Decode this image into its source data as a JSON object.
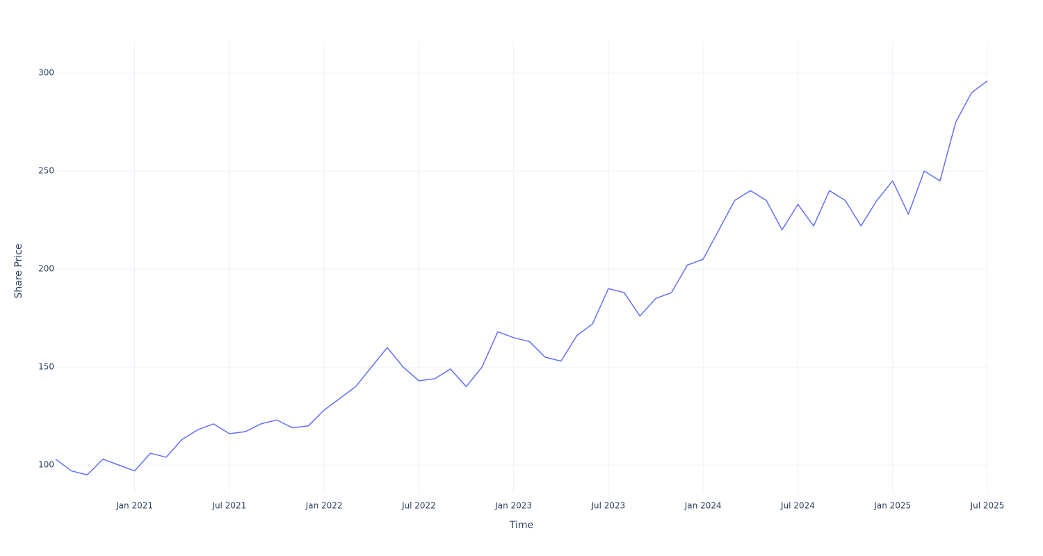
{
  "chart_data": {
    "type": "line",
    "x_label": "Time",
    "y_label": "Share Price",
    "x": [
      "2020-08",
      "2020-09",
      "2020-10",
      "2020-11",
      "2020-12",
      "2021-01",
      "2021-02",
      "2021-03",
      "2021-04",
      "2021-05",
      "2021-06",
      "2021-07",
      "2021-08",
      "2021-09",
      "2021-10",
      "2021-11",
      "2021-12",
      "2022-01",
      "2022-02",
      "2022-03",
      "2022-04",
      "2022-05",
      "2022-06",
      "2022-07",
      "2022-08",
      "2022-09",
      "2022-10",
      "2022-11",
      "2022-12",
      "2023-01",
      "2023-02",
      "2023-03",
      "2023-04",
      "2023-05",
      "2023-06",
      "2023-07",
      "2023-08",
      "2023-09",
      "2023-10",
      "2023-11",
      "2023-12",
      "2024-01",
      "2024-02",
      "2024-03",
      "2024-04",
      "2024-05",
      "2024-06",
      "2024-07",
      "2024-08",
      "2024-09",
      "2024-10",
      "2024-11",
      "2024-12",
      "2025-01",
      "2025-02",
      "2025-03",
      "2025-04",
      "2025-05",
      "2025-06",
      "2025-07"
    ],
    "series": [
      {
        "color": "#636efa",
        "values": [
          103,
          97,
          95,
          103,
          100,
          97,
          106,
          104,
          113,
          118,
          121,
          116,
          117,
          121,
          123,
          119,
          120,
          128,
          134,
          140,
          150,
          160,
          150,
          143,
          144,
          149,
          140,
          150,
          168,
          165,
          163,
          155,
          153,
          166,
          172,
          190,
          188,
          176,
          185,
          188,
          202,
          205,
          220,
          235,
          240,
          235,
          220,
          233,
          222,
          240,
          235,
          222,
          235,
          245,
          228,
          250,
          245,
          275,
          290,
          296
        ]
      }
    ],
    "xlim": [
      "2020-08",
      "2025-07"
    ],
    "xticks": [
      {
        "value": "2021-01",
        "label": "Jan 2021"
      },
      {
        "value": "2021-07",
        "label": "Jul 2021"
      },
      {
        "value": "2022-01",
        "label": "Jan 2022"
      },
      {
        "value": "2022-07",
        "label": "Jul 2022"
      },
      {
        "value": "2023-01",
        "label": "Jan 2023"
      },
      {
        "value": "2023-07",
        "label": "Jul 2023"
      },
      {
        "value": "2024-01",
        "label": "Jan 2024"
      },
      {
        "value": "2024-07",
        "label": "Jul 2024"
      },
      {
        "value": "2025-01",
        "label": "Jan 2025"
      },
      {
        "value": "2025-07",
        "label": "Jul 2025"
      }
    ],
    "ylim": [
      85.5,
      316
    ],
    "yticks": [
      100,
      150,
      200,
      250,
      300
    ],
    "grid": true
  }
}
